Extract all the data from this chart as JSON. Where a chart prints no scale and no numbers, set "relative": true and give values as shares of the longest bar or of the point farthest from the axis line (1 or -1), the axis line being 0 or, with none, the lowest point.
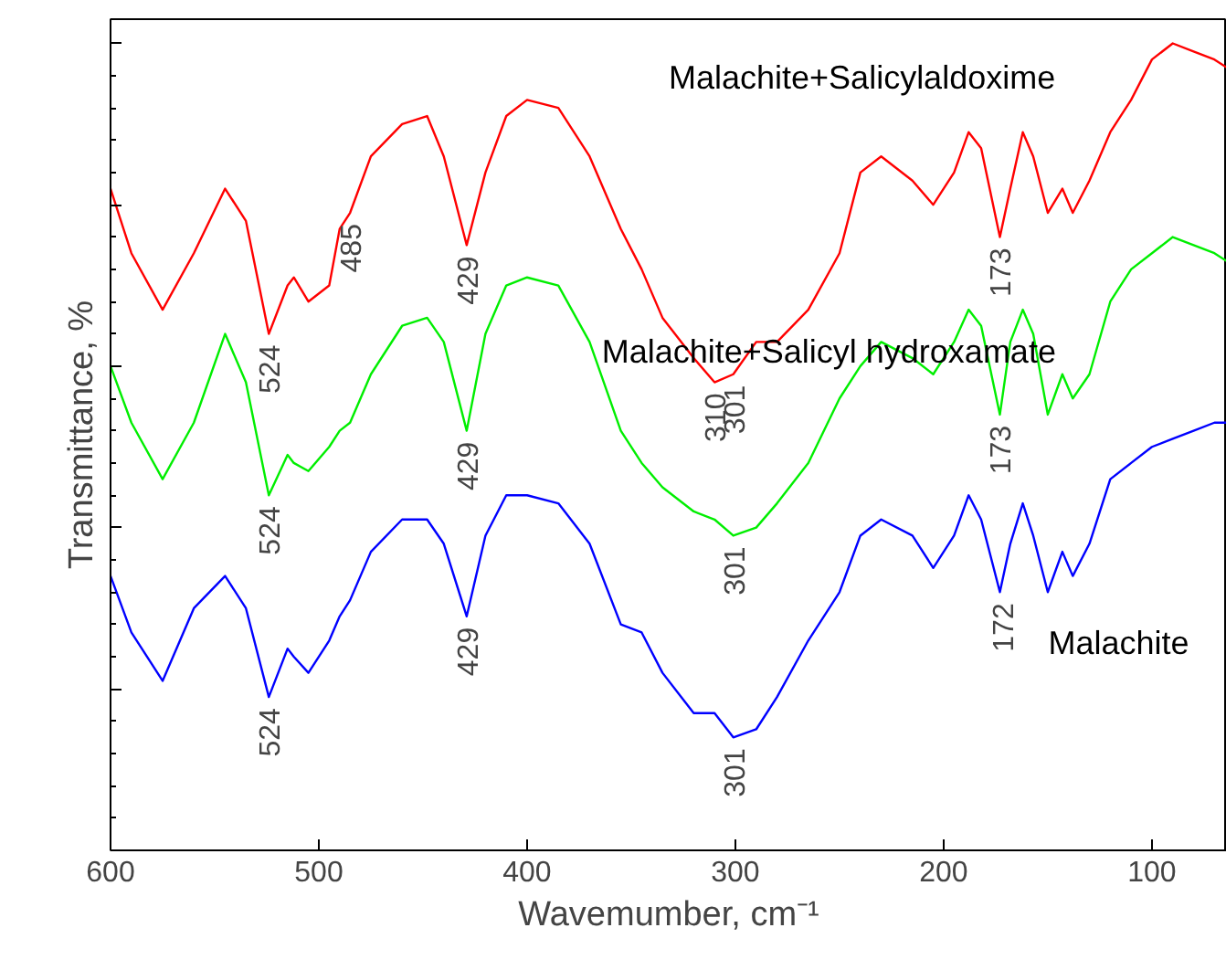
{
  "chart_data": {
    "type": "line",
    "relative": true,
    "xlabel": "Wavemumber, cm⁻¹",
    "ylabel": "Transmittance, %",
    "xlim": [
      600,
      64
    ],
    "xticks": [
      600,
      500,
      400,
      300,
      200,
      100
    ],
    "tick_labels": "x",
    "grid": false,
    "legend": false,
    "line_style": "solid",
    "marker": "none",
    "x": [
      600,
      590,
      575,
      560,
      545,
      535,
      524,
      515,
      512,
      505,
      495,
      490,
      485,
      475,
      460,
      448,
      440,
      429,
      420,
      410,
      400,
      385,
      370,
      355,
      345,
      335,
      320,
      310,
      301,
      290,
      280,
      265,
      250,
      240,
      230,
      215,
      205,
      195,
      188,
      182,
      173,
      168,
      162,
      157,
      150,
      143,
      138,
      130,
      120,
      110,
      100,
      90,
      80,
      70,
      64
    ],
    "series": [
      {
        "name": "Malachite+Salicylaldoxime",
        "color": "#ff0000",
        "values": [
          0.82,
          0.74,
          0.67,
          0.74,
          0.82,
          0.78,
          0.64,
          0.7,
          0.71,
          0.68,
          0.7,
          0.77,
          0.79,
          0.86,
          0.9,
          0.91,
          0.86,
          0.75,
          0.84,
          0.91,
          0.93,
          0.92,
          0.86,
          0.77,
          0.72,
          0.66,
          0.61,
          0.58,
          0.59,
          0.63,
          0.63,
          0.67,
          0.74,
          0.84,
          0.86,
          0.83,
          0.8,
          0.84,
          0.89,
          0.87,
          0.76,
          0.82,
          0.89,
          0.86,
          0.79,
          0.82,
          0.79,
          0.83,
          0.89,
          0.93,
          0.98,
          1.0,
          0.99,
          0.98,
          0.97
        ]
      },
      {
        "name": "Malachite+Salicyl hydroxamate",
        "color": "#00ee00",
        "values": [
          0.6,
          0.53,
          0.46,
          0.53,
          0.64,
          0.58,
          0.44,
          0.49,
          0.48,
          0.47,
          0.5,
          0.52,
          0.53,
          0.59,
          0.65,
          0.66,
          0.63,
          0.52,
          0.64,
          0.7,
          0.71,
          0.7,
          0.63,
          0.52,
          0.48,
          0.45,
          0.42,
          0.41,
          0.39,
          0.4,
          0.43,
          0.48,
          0.56,
          0.6,
          0.63,
          0.61,
          0.59,
          0.63,
          0.67,
          0.65,
          0.54,
          0.63,
          0.67,
          0.64,
          0.54,
          0.59,
          0.56,
          0.59,
          0.68,
          0.72,
          0.74,
          0.76,
          0.75,
          0.74,
          0.73
        ]
      },
      {
        "name": "Malachite",
        "color": "#0000ff",
        "values": [
          0.34,
          0.27,
          0.21,
          0.3,
          0.34,
          0.3,
          0.19,
          0.25,
          0.24,
          0.22,
          0.26,
          0.29,
          0.31,
          0.37,
          0.41,
          0.41,
          0.38,
          0.29,
          0.39,
          0.44,
          0.44,
          0.43,
          0.38,
          0.28,
          0.27,
          0.22,
          0.17,
          0.17,
          0.14,
          0.15,
          0.19,
          0.26,
          0.32,
          0.39,
          0.41,
          0.39,
          0.35,
          0.39,
          0.44,
          0.41,
          0.32,
          0.38,
          0.43,
          0.39,
          0.32,
          0.37,
          0.34,
          0.38,
          0.46,
          0.48,
          0.5,
          0.51,
          0.52,
          0.53,
          0.53
        ]
      }
    ],
    "annotations": [
      {
        "text": "524",
        "x": 524,
        "y": 0.64
      },
      {
        "text": "485",
        "x": 485,
        "y": 0.79
      },
      {
        "text": "429",
        "x": 429,
        "y": 0.75
      },
      {
        "text": "310",
        "x": 310,
        "y": 0.58
      },
      {
        "text": "301",
        "x": 301,
        "y": 0.59
      },
      {
        "text": "173",
        "x": 173,
        "y": 0.76
      },
      {
        "text": "524",
        "x": 524,
        "y": 0.44
      },
      {
        "text": "429",
        "x": 429,
        "y": 0.52
      },
      {
        "text": "301",
        "x": 301,
        "y": 0.39
      },
      {
        "text": "173",
        "x": 173,
        "y": 0.54
      },
      {
        "text": "524",
        "x": 524,
        "y": 0.19
      },
      {
        "text": "429",
        "x": 429,
        "y": 0.29
      },
      {
        "text": "301",
        "x": 301,
        "y": 0.14
      },
      {
        "text": "172",
        "x": 172,
        "y": 0.32
      }
    ]
  }
}
